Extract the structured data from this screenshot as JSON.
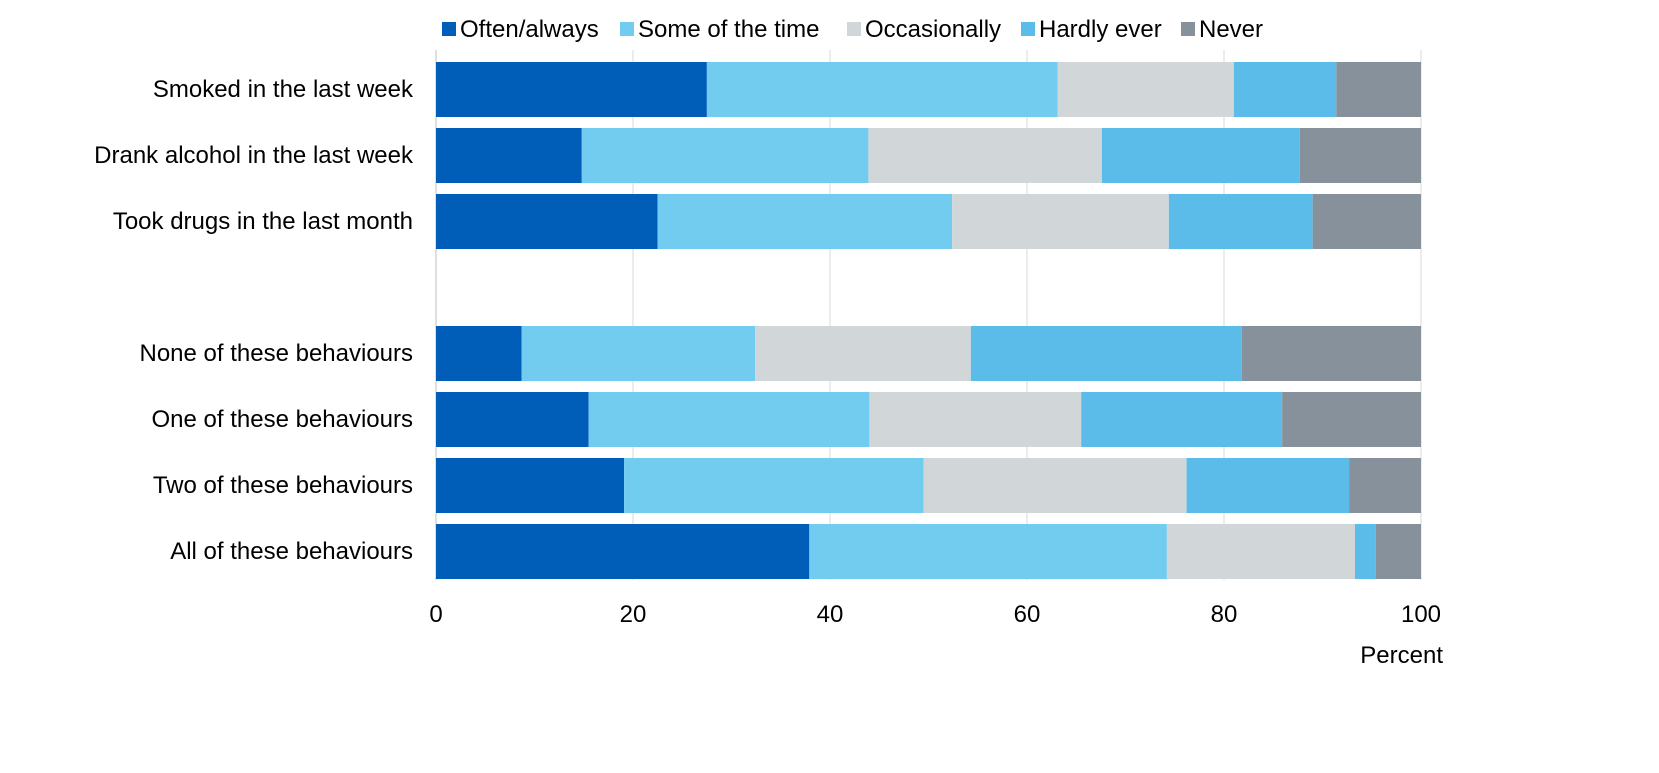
{
  "chart_data": {
    "type": "bar",
    "orientation": "horizontal",
    "stacked": true,
    "title": "",
    "xlabel": "Percent",
    "ylabel": "",
    "xlim": [
      0,
      100
    ],
    "xticks": [
      0,
      20,
      40,
      60,
      80,
      100
    ],
    "grid": true,
    "legend_position": "top",
    "categories": [
      "Smoked in the last week",
      "Drank alcohol in the last week",
      "Took drugs in the last month",
      "",
      "None of these behaviours",
      "One of these behaviours",
      "Two of these behaviours",
      "All of these behaviours"
    ],
    "series": [
      {
        "name": "Often/always",
        "color": "#005eb8",
        "values": [
          27.5,
          14.8,
          22.5,
          null,
          8.7,
          15.5,
          19.1,
          37.9
        ]
      },
      {
        "name": "Some of the time",
        "color": "#71ccef",
        "values": [
          35.6,
          29.1,
          29.9,
          null,
          23.7,
          28.5,
          30.4,
          36.3
        ]
      },
      {
        "name": "Occasionally",
        "color": "#d1d7d8",
        "values": [
          17.9,
          23.7,
          22.0,
          null,
          21.9,
          21.5,
          26.7,
          19.1
        ]
      },
      {
        "name": "Hardly ever",
        "color": "#5cbce9",
        "values": [
          10.4,
          20.1,
          14.6,
          null,
          27.5,
          20.4,
          16.5,
          2.1
        ]
      },
      {
        "name": "Never",
        "color": "#86919b",
        "values": [
          8.6,
          12.3,
          11.0,
          null,
          18.2,
          14.1,
          7.3,
          4.6
        ]
      }
    ]
  }
}
